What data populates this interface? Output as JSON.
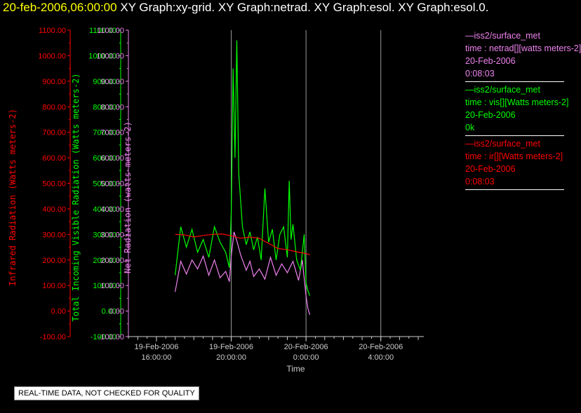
{
  "header": {
    "date": "20-feb-2006,06:00:00",
    "graphs": "XY Graph:xy-grid.  XY Graph:netrad.  XY Graph:esol.  XY Graph:esol.0."
  },
  "legend": [
    {
      "color": "#ee82ee",
      "lines": [
        "—iss2/surface_met",
        "time : netrad[][watts meters-2]",
        "20-Feb-2006",
        "0:08:03"
      ]
    },
    {
      "color": "#00ff00",
      "lines": [
        "—iss2/surface_met",
        "time : vis[][Watts meters-2]",
        "20-Feb-2006",
        "0k"
      ]
    },
    {
      "color": "#ff0000",
      "lines": [
        "—iss2/surface_met",
        "time : ir[][Watts meters-2]",
        "20-Feb-2006",
        "0:08:03"
      ]
    }
  ],
  "quality_note": "REAL-TIME DATA, NOT CHECKED FOR QUALITY",
  "chart_data": {
    "type": "line",
    "xlabel": "Time",
    "x_ticks": [
      {
        "hour": 16,
        "label": [
          "19-Feb-2006",
          "16:00:00"
        ]
      },
      {
        "hour": 20,
        "label": [
          "19-Feb-2006",
          "20:00:00"
        ]
      },
      {
        "hour": 24,
        "label": [
          "20-Feb-2006",
          "0:00:00"
        ]
      },
      {
        "hour": 28,
        "label": [
          "20-Feb-2006",
          "4:00:00"
        ]
      }
    ],
    "xlim": [
      14.5,
      30.3
    ],
    "ylim": [
      -100,
      1100
    ],
    "y_ticks": [
      "-100.00",
      "0.00",
      "100.00",
      "200.00",
      "300.00",
      "400.00",
      "500.00",
      "600.00",
      "700.00",
      "800.00",
      "900.00",
      "1000.00",
      "1100.00"
    ],
    "axes": [
      {
        "label": "Infrared Radiation (Watts meters-2)",
        "color": "#ff0000"
      },
      {
        "label": "Total Incoming Visible Radiation (Watts meters-2)",
        "color": "#00ff00"
      },
      {
        "label": "Net Radiation (watts meters-2)",
        "color": "#ee82ee"
      }
    ],
    "grid": "vertical lines at major x ticks",
    "series": [
      {
        "name": "time : netrad[][watts meters-2]",
        "color": "#ee82ee",
        "x": [
          17.0,
          17.3,
          17.6,
          17.9,
          18.2,
          18.5,
          18.8,
          19.1,
          19.4,
          19.7,
          19.9,
          20.0,
          20.15,
          20.3,
          20.5,
          20.8,
          21.0,
          21.2,
          21.5,
          21.8,
          22.1,
          22.4,
          22.7,
          23.0,
          23.3,
          23.6,
          23.8,
          24.0,
          24.1,
          24.2
        ],
        "y": [
          75,
          195,
          145,
          200,
          165,
          215,
          140,
          200,
          130,
          155,
          115,
          215,
          310,
          275,
          220,
          160,
          195,
          135,
          165,
          125,
          210,
          140,
          185,
          150,
          195,
          120,
          200,
          60,
          10,
          -15
        ]
      },
      {
        "name": "time : vis[][Watts meters-2]",
        "color": "#00ff00",
        "x": [
          17.0,
          17.3,
          17.6,
          17.9,
          18.2,
          18.5,
          18.8,
          19.1,
          19.4,
          19.7,
          19.9,
          20.0,
          20.1,
          20.2,
          20.3,
          20.4,
          20.6,
          20.8,
          21.0,
          21.2,
          21.4,
          21.6,
          21.8,
          22.0,
          22.2,
          22.4,
          22.6,
          22.8,
          23.0,
          23.1,
          23.2,
          23.3,
          23.5,
          23.7,
          23.9,
          24.0,
          24.1,
          24.2
        ],
        "y": [
          140,
          330,
          250,
          320,
          230,
          280,
          210,
          330,
          270,
          230,
          170,
          390,
          950,
          600,
          1060,
          540,
          330,
          260,
          310,
          240,
          290,
          200,
          480,
          270,
          320,
          200,
          300,
          330,
          210,
          510,
          280,
          340,
          200,
          160,
          300,
          110,
          80,
          60
        ]
      },
      {
        "name": "time : ir[][Watts meters-2]",
        "color": "#ff0000",
        "x": [
          17.0,
          17.5,
          18.0,
          18.5,
          19.0,
          19.5,
          20.0,
          20.5,
          21.0,
          21.5,
          22.0,
          22.5,
          23.0,
          23.5,
          24.0,
          24.2
        ],
        "y": [
          300,
          298,
          290,
          296,
          300,
          302,
          295,
          285,
          290,
          285,
          265,
          245,
          240,
          232,
          225,
          220
        ]
      }
    ]
  }
}
